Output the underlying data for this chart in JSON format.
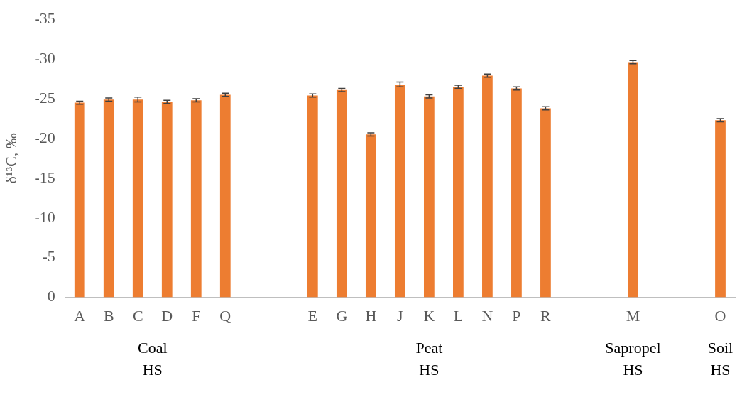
{
  "chart_data": {
    "type": "bar",
    "ylabel": "δ¹³C, ‰",
    "categories": [
      "A",
      "B",
      "C",
      "D",
      "F",
      "Q",
      null,
      null,
      "E",
      "G",
      "H",
      "J",
      "K",
      "L",
      "N",
      "P",
      "R",
      null,
      null,
      "M",
      null,
      null,
      "O"
    ],
    "values": [
      -24.5,
      -24.9,
      -24.9,
      -24.6,
      -24.8,
      -25.5,
      null,
      null,
      -25.4,
      -26.1,
      -20.5,
      -26.8,
      -25.3,
      -26.5,
      -27.9,
      -26.3,
      -23.8,
      null,
      null,
      -29.6,
      null,
      null,
      -22.3
    ],
    "errors": [
      0.2,
      0.2,
      0.3,
      0.2,
      0.2,
      0.2,
      null,
      null,
      0.2,
      0.2,
      0.2,
      0.3,
      0.2,
      0.2,
      0.2,
      0.2,
      0.2,
      null,
      null,
      0.2,
      null,
      null,
      0.2
    ],
    "color": "#ed7d31",
    "ylim": [
      0,
      -35
    ],
    "yticks": [
      0,
      -5,
      -10,
      -15,
      -20,
      -25,
      -30,
      -35
    ],
    "grid": false,
    "legend": false,
    "annotations": [
      "Coal\nHS",
      "Peat\nHS",
      "Sapropel\nHS",
      "Soil\nHS"
    ]
  }
}
